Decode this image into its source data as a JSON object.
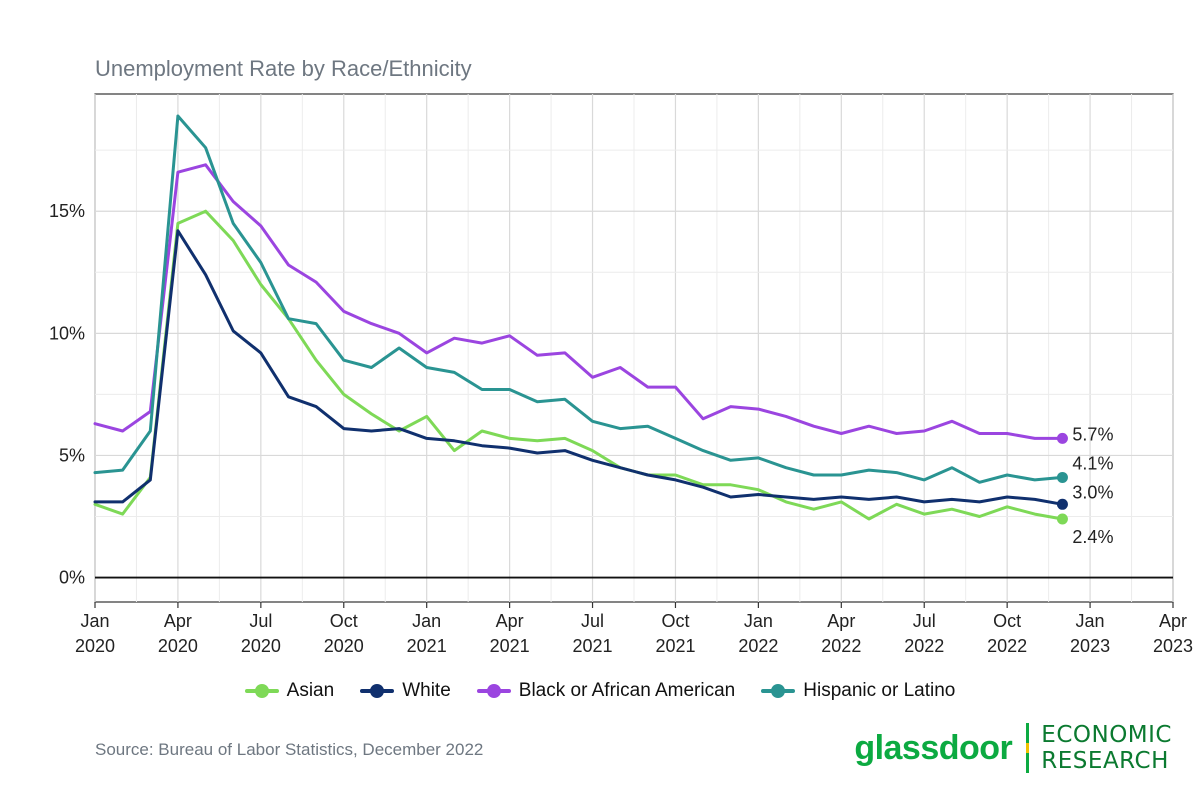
{
  "chart_data": {
    "type": "line",
    "title": "Unemployment Rate by Race/Ethnicity",
    "xlabel": "",
    "ylabel": "",
    "x_ticks": [
      [
        "Jan",
        "2020"
      ],
      [
        "Apr",
        "2020"
      ],
      [
        "Jul",
        "2020"
      ],
      [
        "Oct",
        "2020"
      ],
      [
        "Jan",
        "2021"
      ],
      [
        "Apr",
        "2021"
      ],
      [
        "Jul",
        "2021"
      ],
      [
        "Oct",
        "2021"
      ],
      [
        "Jan",
        "2022"
      ],
      [
        "Apr",
        "2022"
      ],
      [
        "Jul",
        "2022"
      ],
      [
        "Oct",
        "2022"
      ],
      [
        "Jan",
        "2023"
      ],
      [
        "Apr",
        "2023"
      ]
    ],
    "x_start": "2020-01",
    "x_end": "2023-04",
    "y_ticks": [
      "0%",
      "5%",
      "10%",
      "15%"
    ],
    "ylim": [
      -1,
      19.8
    ],
    "grid": true,
    "legend_position": "bottom",
    "series": [
      {
        "name": "Asian",
        "color": "#7ed957",
        "end_label": "2.4%",
        "values": [
          3.0,
          2.6,
          4.1,
          14.5,
          15.0,
          13.8,
          12.0,
          10.6,
          8.9,
          7.5,
          6.7,
          6.0,
          6.6,
          5.2,
          6.0,
          5.7,
          5.6,
          5.7,
          5.2,
          4.5,
          4.2,
          4.2,
          3.8,
          3.8,
          3.6,
          3.1,
          2.8,
          3.1,
          2.4,
          3.0,
          2.6,
          2.8,
          2.5,
          2.9,
          2.6,
          2.4
        ]
      },
      {
        "name": "White",
        "color": "#10306e",
        "end_label": "3.0%",
        "values": [
          3.1,
          3.1,
          4.0,
          14.2,
          12.4,
          10.1,
          9.2,
          7.4,
          7.0,
          6.1,
          6.0,
          6.1,
          5.7,
          5.6,
          5.4,
          5.3,
          5.1,
          5.2,
          4.8,
          4.5,
          4.2,
          4.0,
          3.7,
          3.3,
          3.4,
          3.3,
          3.2,
          3.3,
          3.2,
          3.3,
          3.1,
          3.2,
          3.1,
          3.3,
          3.2,
          3.0
        ]
      },
      {
        "name": "Black or African American",
        "color": "#9b45e0",
        "end_label": "5.7%",
        "values": [
          6.3,
          6.0,
          6.8,
          16.6,
          16.9,
          15.4,
          14.4,
          12.8,
          12.1,
          10.9,
          10.4,
          10.0,
          9.2,
          9.8,
          9.6,
          9.9,
          9.1,
          9.2,
          8.2,
          8.6,
          7.8,
          7.8,
          6.5,
          7.0,
          6.9,
          6.6,
          6.2,
          5.9,
          6.2,
          5.9,
          6.0,
          6.4,
          5.9,
          5.9,
          5.7,
          5.7
        ]
      },
      {
        "name": "Hispanic or Latino",
        "color": "#2a9492",
        "end_label": "4.1%",
        "values": [
          4.3,
          4.4,
          6.0,
          18.9,
          17.6,
          14.5,
          12.9,
          10.6,
          10.4,
          8.9,
          8.6,
          9.4,
          8.6,
          8.4,
          7.7,
          7.7,
          7.2,
          7.3,
          6.4,
          6.1,
          6.2,
          5.7,
          5.2,
          4.8,
          4.9,
          4.5,
          4.2,
          4.2,
          4.4,
          4.3,
          4.0,
          4.5,
          3.9,
          4.2,
          4.0,
          4.1
        ]
      }
    ]
  },
  "footer": {
    "source": "Source: Bureau of Labor Statistics, December 2022",
    "brand_name": "glassdoor",
    "brand_line1": "ECONOMIC",
    "brand_line2": "RESEARCH"
  }
}
